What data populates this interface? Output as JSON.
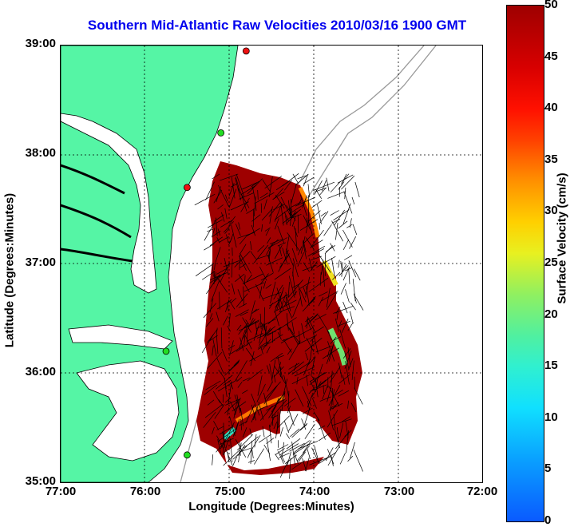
{
  "title": "Southern Mid-Atlantic Raw Velocities 2010/03/16 1900 GMT",
  "x_axis": {
    "label": "Longitude (Degrees:Minutes)",
    "ticks": [
      "77:00",
      "76:00",
      "75:00",
      "74:00",
      "73:00",
      "72:00"
    ]
  },
  "y_axis": {
    "label": "Latitude (Degrees:Minutes)",
    "ticks": [
      "39:00",
      "38:00",
      "37:00",
      "36:00",
      "35:00"
    ]
  },
  "colorbar": {
    "label": "Surface Velocity (cm/s)",
    "ticks": [
      "50",
      "45",
      "40",
      "35",
      "30",
      "25",
      "20",
      "15",
      "10",
      "5",
      "0"
    ],
    "range": [
      0,
      50
    ]
  },
  "colors": {
    "land": "#55f5a5",
    "velocity_max": "#9e0000",
    "title": "#0000ee",
    "station_green": "#22dd22",
    "station_red": "#ee1111"
  },
  "map_extent": {
    "lon": [
      -77,
      -72
    ],
    "lat": [
      35,
      39
    ]
  },
  "stations": [
    {
      "lon": -74.8,
      "lat": 38.95,
      "status": "red"
    },
    {
      "lon": -75.1,
      "lat": 38.2,
      "status": "green"
    },
    {
      "lon": -75.5,
      "lat": 37.7,
      "status": "red"
    },
    {
      "lon": -75.75,
      "lat": 36.2,
      "status": "green"
    },
    {
      "lon": -75.5,
      "lat": 35.25,
      "status": "green"
    }
  ]
}
